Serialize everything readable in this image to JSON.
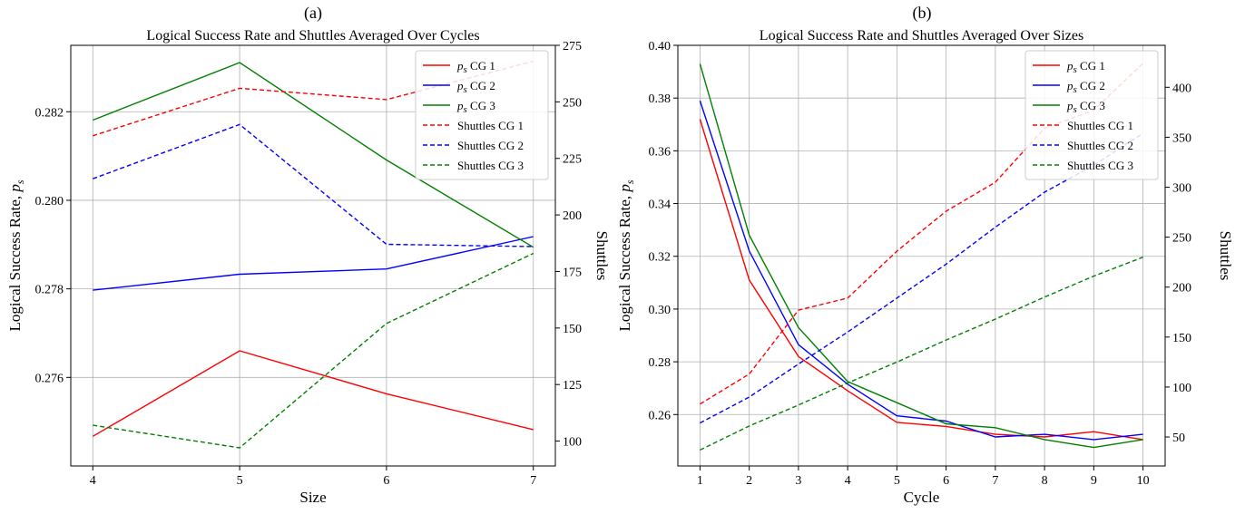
{
  "panels": [
    {
      "label": "(a)",
      "chart_data": {
        "type": "line",
        "title": "Logical Success Rate and Shuttles Averaged Over Cycles",
        "xlabel": "Size",
        "ylabel": "Logical Success Rate, p_s",
        "ylabel_main": "Logical Success Rate, ",
        "ylabel_var": "p",
        "ylabel_sub": "s",
        "y2label": "Shuttles",
        "x": [
          4,
          5,
          6,
          7
        ],
        "xlim": [
          3.85,
          7.15
        ],
        "ylim": [
          0.274,
          0.2835
        ],
        "y2lim": [
          89,
          275
        ],
        "xticks": [
          "4",
          "5",
          "6",
          "7"
        ],
        "yticks": [
          "0.276",
          "0.278",
          "0.280",
          "0.282"
        ],
        "y2ticks": [
          "100",
          "125",
          "150",
          "175",
          "200",
          "225",
          "250",
          "275"
        ],
        "grid": true,
        "legend_position": "upper-right",
        "series": [
          {
            "name": "p_s CG 1",
            "name_var": "p",
            "name_sub": "s",
            "name_rest": " CG 1",
            "axis": "left",
            "style": "solid",
            "color": "#ff0000",
            "values": [
              0.27467,
              0.2766,
              0.27563,
              0.27482
            ]
          },
          {
            "name": "p_s CG 2",
            "name_var": "p",
            "name_sub": "s",
            "name_rest": " CG 2",
            "axis": "left",
            "style": "solid",
            "color": "#0000ff",
            "values": [
              0.27797,
              0.27833,
              0.27845,
              0.27918
            ]
          },
          {
            "name": "p_s CG 3",
            "name_var": "p",
            "name_sub": "s",
            "name_rest": " CG 3",
            "axis": "left",
            "style": "solid",
            "color": "#008000",
            "values": [
              0.28181,
              0.28311,
              0.28091,
              0.27894
            ]
          },
          {
            "name": "Shuttles CG 1",
            "axis": "right",
            "style": "dashed",
            "color": "#ff0000",
            "values": [
              235,
              256,
              251,
              268
            ]
          },
          {
            "name": "Shuttles CG 2",
            "axis": "right",
            "style": "dashed",
            "color": "#0000ff",
            "values": [
              216,
              240,
              187,
              186
            ]
          },
          {
            "name": "Shuttles CG 3",
            "axis": "right",
            "style": "dashed",
            "color": "#008000",
            "values": [
              107,
              97,
              152,
              183
            ]
          }
        ]
      }
    },
    {
      "label": "(b)",
      "chart_data": {
        "type": "line",
        "title": "Logical Success Rate and Shuttles Averaged Over Sizes",
        "xlabel": "Cycle",
        "ylabel": "Logical Success Rate, p_s",
        "ylabel_main": "Logical Success Rate, ",
        "ylabel_var": "p",
        "ylabel_sub": "s",
        "y2label": "Shuttles",
        "x": [
          1,
          2,
          3,
          4,
          5,
          6,
          7,
          8,
          9,
          10
        ],
        "xlim": [
          0.55,
          10.45
        ],
        "ylim": [
          0.2405,
          0.4
        ],
        "y2lim": [
          21,
          442
        ],
        "xticks": [
          "1",
          "2",
          "3",
          "4",
          "5",
          "6",
          "7",
          "8",
          "9",
          "10"
        ],
        "yticks": [
          "0.26",
          "0.28",
          "0.30",
          "0.32",
          "0.34",
          "0.36",
          "0.38",
          "0.40"
        ],
        "y2ticks": [
          "50",
          "100",
          "150",
          "200",
          "250",
          "300",
          "350",
          "400"
        ],
        "grid": true,
        "legend_position": "upper-right",
        "series": [
          {
            "name": "p_s CG 1",
            "name_var": "p",
            "name_sub": "s",
            "name_rest": " CG 1",
            "axis": "left",
            "style": "solid",
            "color": "#ff0000",
            "values": [
              0.372,
              0.311,
              0.282,
              0.269,
              0.257,
              0.2555,
              0.2525,
              0.2515,
              0.2535,
              0.2505
            ]
          },
          {
            "name": "p_s CG 2",
            "name_var": "p",
            "name_sub": "s",
            "name_rest": " CG 2",
            "axis": "left",
            "style": "solid",
            "color": "#0000ff",
            "values": [
              0.379,
              0.322,
              0.2865,
              0.2715,
              0.2595,
              0.2575,
              0.2515,
              0.2525,
              0.2505,
              0.2525
            ]
          },
          {
            "name": "p_s CG 3",
            "name_var": "p",
            "name_sub": "s",
            "name_rest": " CG 3",
            "axis": "left",
            "style": "solid",
            "color": "#008000",
            "values": [
              0.393,
              0.328,
              0.293,
              0.2725,
              0.2645,
              0.2565,
              0.255,
              0.2505,
              0.2475,
              0.2505
            ]
          },
          {
            "name": "Shuttles CG 1",
            "axis": "right",
            "style": "dashed",
            "color": "#ff0000",
            "values": [
              83,
              113,
              177,
              189,
              236,
              276,
              305,
              359,
              377,
              424
            ]
          },
          {
            "name": "Shuttles CG 2",
            "axis": "right",
            "style": "dashed",
            "color": "#0000ff",
            "values": [
              64,
              90,
              123,
              155,
              189,
              223,
              260,
              295,
              322,
              354
            ]
          },
          {
            "name": "Shuttles CG 3",
            "axis": "right",
            "style": "dashed",
            "color": "#008000",
            "values": [
              37,
              61,
              82,
              104,
              125,
              147,
              168,
              190,
              211,
              230
            ]
          }
        ]
      }
    }
  ]
}
